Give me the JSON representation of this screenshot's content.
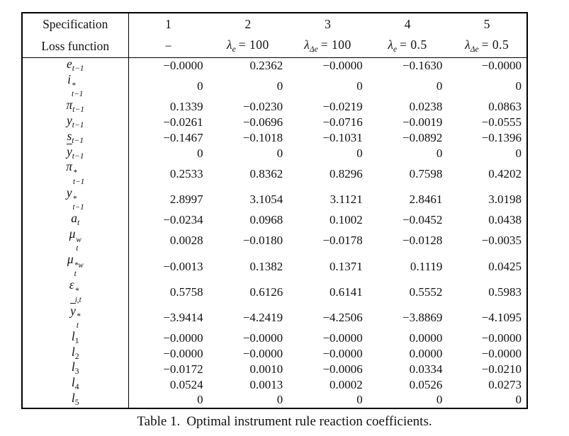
{
  "caption": {
    "prefix": "Table 1.",
    "text": "Optimal instrument rule reaction coefficients."
  },
  "table": {
    "header": {
      "row1_label": "Specification",
      "spec_numbers": [
        "1",
        "2",
        "3",
        "4",
        "5"
      ],
      "row2_label": "Loss function",
      "loss_functions": [
        {
          "text": "−"
        },
        {
          "base": "λ",
          "sub": "e",
          "suffix": "= 100"
        },
        {
          "base": "λ",
          "sub": "Δe",
          "suffix": "= 100"
        },
        {
          "base": "λ",
          "sub": "e",
          "suffix": "= 0.5"
        },
        {
          "base": "λ",
          "sub": "Δe",
          "suffix": "= 0.5"
        }
      ]
    },
    "rows": [
      {
        "label": {
          "base": "e",
          "sub": "t−1"
        },
        "values": [
          "−0.0000",
          "0.2362",
          "−0.0000",
          "−0.1630",
          "−0.0000"
        ]
      },
      {
        "label": {
          "base": "i",
          "sup": "*",
          "sub": "t−1"
        },
        "values": [
          "0",
          "0",
          "0",
          "0",
          "0"
        ]
      },
      {
        "label": {
          "base": "π",
          "sub": "t−1"
        },
        "values": [
          "0.1339",
          "−0.0230",
          "−0.0219",
          "0.0238",
          "0.0863"
        ]
      },
      {
        "label": {
          "base": "y",
          "sub": "t−1"
        },
        "values": [
          "−0.0261",
          "−0.0696",
          "−0.0716",
          "−0.0019",
          "−0.0555"
        ]
      },
      {
        "label": {
          "base": "s",
          "sub": "t−1"
        },
        "values": [
          "−0.1467",
          "−0.1018",
          "−0.1031",
          "−0.0892",
          "−0.1396"
        ]
      },
      {
        "label": {
          "base": "y",
          "bar": true,
          "sub": "t−1"
        },
        "values": [
          "0",
          "0",
          "0",
          "0",
          "0"
        ]
      },
      {
        "label": {
          "base": "π",
          "sup": "*",
          "sub": "t−1"
        },
        "values": [
          "0.2533",
          "0.8362",
          "0.8296",
          "0.7598",
          "0.4202"
        ]
      },
      {
        "label": {
          "base": "y",
          "sup": "*",
          "sub": "t−1"
        },
        "values": [
          "2.8997",
          "3.1054",
          "3.1121",
          "2.8461",
          "3.0198"
        ]
      },
      {
        "label": {
          "base": "a",
          "sub": "t"
        },
        "values": [
          "−0.0234",
          "0.0968",
          "0.1002",
          "−0.0452",
          "0.0438"
        ]
      },
      {
        "label": {
          "base": "μ",
          "sup": "w",
          "sub": "t"
        },
        "values": [
          "0.0028",
          "−0.0180",
          "−0.0178",
          "−0.0128",
          "−0.0035"
        ]
      },
      {
        "label": {
          "base": "μ",
          "sup": "*w",
          "sub": "t"
        },
        "values": [
          "−0.0013",
          "0.1382",
          "0.1371",
          "0.1119",
          "0.0425"
        ]
      },
      {
        "label": {
          "base": "ε",
          "sup": "*",
          "sub": "i,t"
        },
        "values": [
          "0.5758",
          "0.6126",
          "0.6141",
          "0.5552",
          "0.5983"
        ]
      },
      {
        "label": {
          "base": "y",
          "bar": true,
          "sup": "*",
          "sub": "t"
        },
        "values": [
          "−3.9414",
          "−4.2419",
          "−4.2506",
          "−3.8869",
          "−4.1095"
        ]
      },
      {
        "label": {
          "base": "l",
          "sub": "1"
        },
        "values": [
          "−0.0000",
          "−0.0000",
          "−0.0000",
          "0.0000",
          "−0.0000"
        ]
      },
      {
        "label": {
          "base": "l",
          "sub": "2"
        },
        "values": [
          "−0.0000",
          "−0.0000",
          "−0.0000",
          "0.0000",
          "−0.0000"
        ]
      },
      {
        "label": {
          "base": "l",
          "sub": "3"
        },
        "values": [
          "−0.0172",
          "0.0010",
          "−0.0006",
          "0.0334",
          "−0.0210"
        ]
      },
      {
        "label": {
          "base": "l",
          "sub": "4"
        },
        "values": [
          "0.0524",
          "0.0013",
          "0.0002",
          "0.0526",
          "0.0273"
        ]
      },
      {
        "label": {
          "base": "l",
          "sub": "5"
        },
        "values": [
          "0",
          "0",
          "0",
          "0",
          "0"
        ]
      }
    ]
  }
}
